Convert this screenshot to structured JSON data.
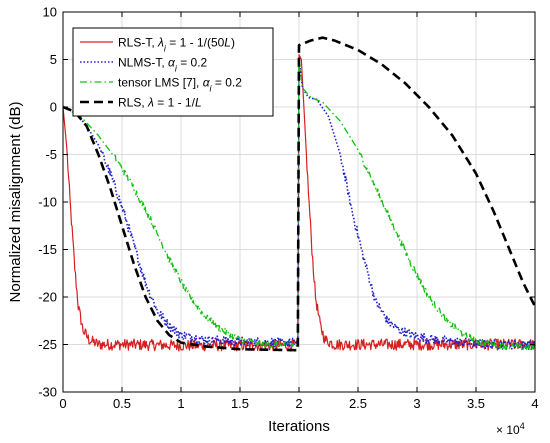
{
  "chart_data": {
    "type": "line",
    "xlabel": "Iterations",
    "ylabel": "Normalized misalignment (dB)",
    "x_multiplier_text": {
      "base": "× 10",
      "exponent": "4"
    },
    "xlim": [
      0,
      4
    ],
    "ylim": [
      -30,
      10
    ],
    "xticks": [
      0,
      0.5,
      1,
      1.5,
      2,
      2.5,
      3,
      3.5,
      4
    ],
    "xtick_labels": [
      "0",
      "0.5",
      "1",
      "1.5",
      "2",
      "2.5",
      "3",
      "3.5",
      "4"
    ],
    "yticks": [
      10,
      5,
      0,
      -5,
      -10,
      -15,
      -20,
      -25,
      -30
    ],
    "ytick_labels": [
      "10",
      "5",
      "0",
      "-5",
      "-10",
      "-15",
      "-20",
      "-25",
      "-30"
    ],
    "grid": true,
    "legend_position": "top-left",
    "series": [
      {
        "name": "RLS-T, λi = 1 - 1/(50L)",
        "legend": {
          "pre": "RLS-T, ",
          "sym": "λ",
          "sub": "i",
          "post": " = 1 - 1/(50",
          "ital": "L",
          "post2": ")"
        },
        "color": "#d62020",
        "dash": "solid",
        "noise": 0.6,
        "points": [
          [
            0,
            0
          ],
          [
            0.03,
            -4
          ],
          [
            0.06,
            -10
          ],
          [
            0.1,
            -17
          ],
          [
            0.13,
            -21
          ],
          [
            0.17,
            -23.5
          ],
          [
            0.22,
            -24.5
          ],
          [
            0.3,
            -25
          ],
          [
            0.5,
            -25
          ],
          [
            1,
            -25.1
          ],
          [
            1.5,
            -25.1
          ],
          [
            1.99,
            -25.1
          ],
          [
            2.0,
            5.5
          ],
          [
            2.02,
            5
          ],
          [
            2.05,
            -2
          ],
          [
            2.08,
            -9
          ],
          [
            2.11,
            -15
          ],
          [
            2.14,
            -20
          ],
          [
            2.18,
            -23
          ],
          [
            2.22,
            -24.5
          ],
          [
            2.3,
            -25
          ],
          [
            2.5,
            -25
          ],
          [
            3,
            -25
          ],
          [
            3.5,
            -25
          ],
          [
            4,
            -25
          ]
        ]
      },
      {
        "name": "NLMS-T, αi = 0.2",
        "legend": {
          "pre": "NLMS-T, ",
          "sym": "α",
          "sub": "i",
          "post": " = 0.2",
          "ital": "",
          "post2": ""
        },
        "color": "#2020c8",
        "dash": "dotted",
        "noise": 0.5,
        "points": [
          [
            0,
            0
          ],
          [
            0.1,
            -0.5
          ],
          [
            0.2,
            -2
          ],
          [
            0.3,
            -4
          ],
          [
            0.4,
            -7
          ],
          [
            0.5,
            -10.5
          ],
          [
            0.6,
            -14.5
          ],
          [
            0.7,
            -18.5
          ],
          [
            0.8,
            -21.5
          ],
          [
            0.9,
            -23
          ],
          [
            1.0,
            -24
          ],
          [
            1.2,
            -24.5
          ],
          [
            1.5,
            -24.7
          ],
          [
            1.99,
            -24.8
          ],
          [
            2.0,
            5
          ],
          [
            2.03,
            2
          ],
          [
            2.08,
            1
          ],
          [
            2.15,
            0.8
          ],
          [
            2.25,
            -1
          ],
          [
            2.35,
            -5
          ],
          [
            2.45,
            -11
          ],
          [
            2.55,
            -16
          ],
          [
            2.65,
            -20.5
          ],
          [
            2.75,
            -22.5
          ],
          [
            2.85,
            -23.5
          ],
          [
            3.0,
            -24.2
          ],
          [
            3.3,
            -24.7
          ],
          [
            3.6,
            -25
          ],
          [
            4.0,
            -25
          ]
        ]
      },
      {
        "name": "tensor LMS [7], αi = 0.2",
        "legend": {
          "pre": "tensor LMS [7], ",
          "sym": "α",
          "sub": "i",
          "post": " = 0.2",
          "ital": "",
          "post2": ""
        },
        "color": "#10c010",
        "dash": "dashdot",
        "noise": 0.35,
        "points": [
          [
            0,
            0
          ],
          [
            0.15,
            -1
          ],
          [
            0.3,
            -3
          ],
          [
            0.45,
            -5.5
          ],
          [
            0.6,
            -8.5
          ],
          [
            0.75,
            -12
          ],
          [
            0.9,
            -16
          ],
          [
            1.05,
            -19.5
          ],
          [
            1.2,
            -22
          ],
          [
            1.35,
            -23.5
          ],
          [
            1.5,
            -24.5
          ],
          [
            1.7,
            -25
          ],
          [
            1.99,
            -25
          ],
          [
            2.0,
            5
          ],
          [
            2.03,
            2
          ],
          [
            2.1,
            1
          ],
          [
            2.2,
            0.5
          ],
          [
            2.35,
            -1.5
          ],
          [
            2.5,
            -4.5
          ],
          [
            2.65,
            -8.5
          ],
          [
            2.8,
            -12.5
          ],
          [
            2.95,
            -16.5
          ],
          [
            3.1,
            -20
          ],
          [
            3.25,
            -22.5
          ],
          [
            3.4,
            -24
          ],
          [
            3.55,
            -24.8
          ],
          [
            3.8,
            -25.2
          ],
          [
            4.0,
            -25.3
          ]
        ]
      },
      {
        "name": "RLS, λ = 1 - 1/L",
        "legend": {
          "pre": "RLS, ",
          "sym": "λ",
          "sub": "",
          "post": " = 1 - 1/",
          "ital": "L",
          "post2": ""
        },
        "color": "#000000",
        "dash": "dashed",
        "noise": 0,
        "points": [
          [
            0,
            0
          ],
          [
            0.1,
            -0.5
          ],
          [
            0.2,
            -2
          ],
          [
            0.3,
            -5
          ],
          [
            0.4,
            -8.5
          ],
          [
            0.5,
            -12.5
          ],
          [
            0.6,
            -16.5
          ],
          [
            0.7,
            -20
          ],
          [
            0.8,
            -22.5
          ],
          [
            0.9,
            -24
          ],
          [
            1.0,
            -24.8
          ],
          [
            1.2,
            -25.2
          ],
          [
            1.5,
            -25.5
          ],
          [
            1.99,
            -25.6
          ],
          [
            2.0,
            6.5
          ],
          [
            2.1,
            7
          ],
          [
            2.2,
            7.3
          ],
          [
            2.3,
            7.0
          ],
          [
            2.5,
            6
          ],
          [
            2.7,
            4.5
          ],
          [
            2.9,
            2.5
          ],
          [
            3.1,
            0
          ],
          [
            3.3,
            -3
          ],
          [
            3.5,
            -7
          ],
          [
            3.65,
            -11
          ],
          [
            3.8,
            -15.5
          ],
          [
            3.9,
            -18.5
          ],
          [
            4.0,
            -21
          ]
        ]
      }
    ]
  }
}
